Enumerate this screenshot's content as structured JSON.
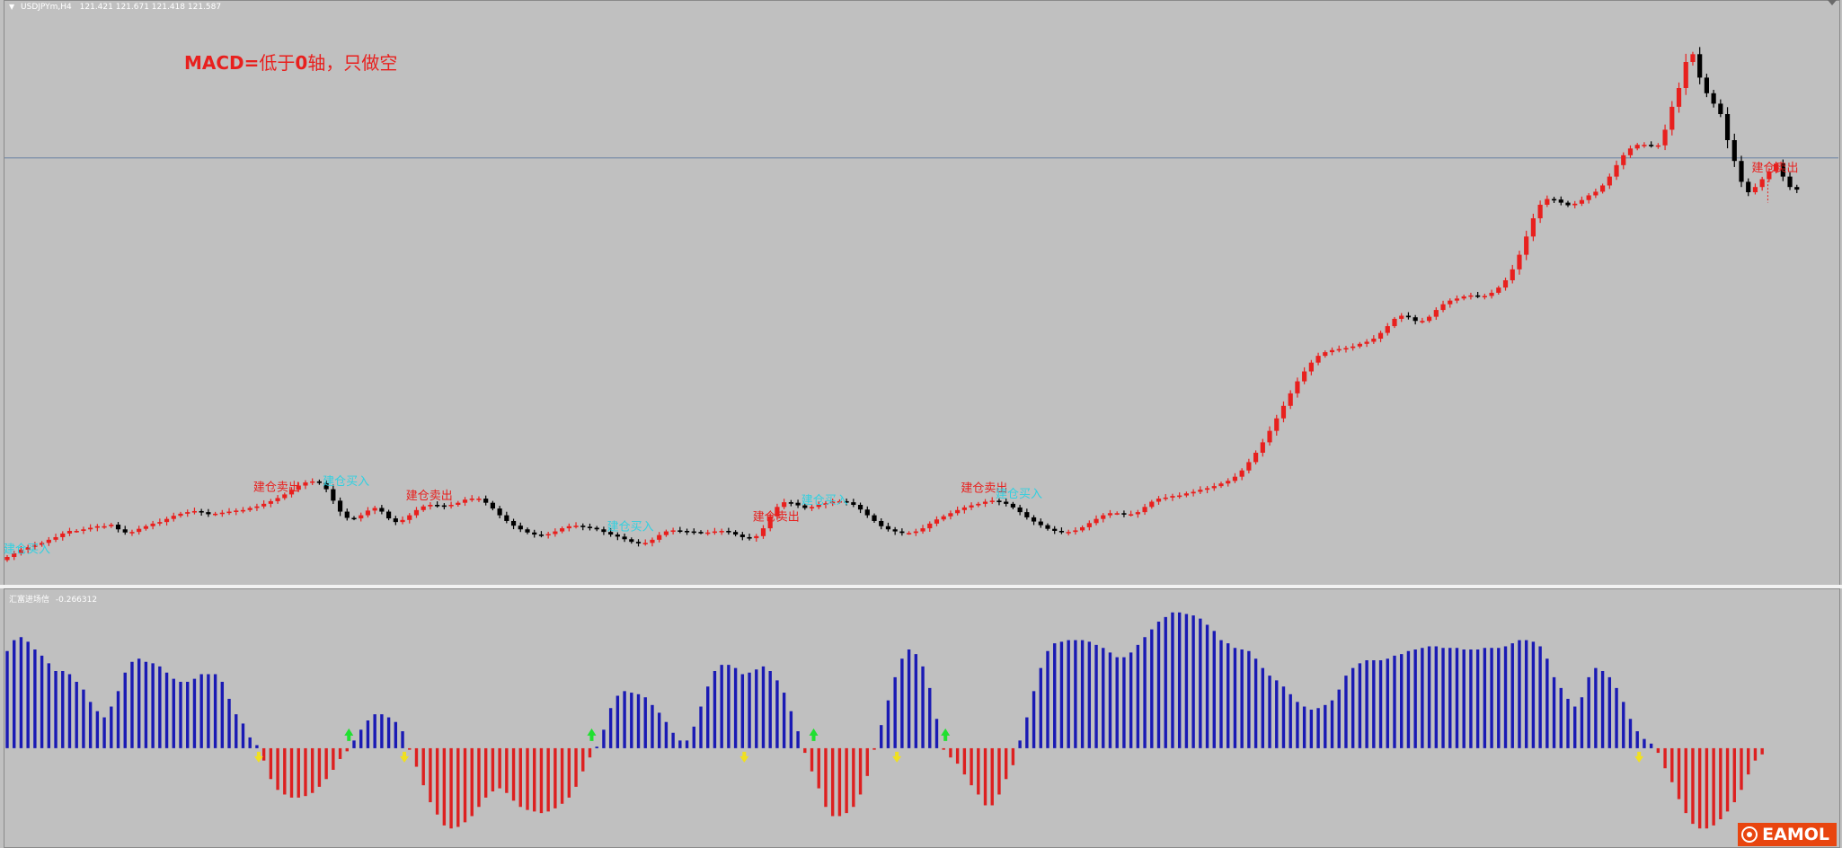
{
  "chart": {
    "symbol": "USDJPYm,H4",
    "ohlc": "121.421 121.671 121.418 121.587"
  },
  "annotation": {
    "strong": "MACD=",
    "rest": "低于",
    "zero": "0",
    "tail": "轴，只做空"
  },
  "indicator": {
    "name": "汇富进场信",
    "value": "-0.266312"
  },
  "watermark": {
    "brand": "EAMOL"
  },
  "colors": {
    "background": "#c0c0c0",
    "bull_candle": "#e8201e",
    "bear_candle": "#000000",
    "histogram_positive": "#1a1ab4",
    "histogram_negative": "#dd2020",
    "sell_label": "#e8201e",
    "buy_label": "#30d0e0",
    "buy_arrow": "#20e030",
    "sell_arrow": "#f0e020",
    "price_line": "#7a8ea8"
  },
  "chart_data": {
    "type": "candlestick",
    "main_series": {
      "name": "USDJPYm,H4",
      "close": [
        0.0,
        0.7,
        1.4,
        1.9,
        2.3,
        2.7,
        3.3,
        3.8,
        4.5,
        5.0,
        5.0,
        5.3,
        5.6,
        5.9,
        5.9,
        6.2,
        5.3,
        4.7,
        4.8,
        5.4,
        5.9,
        6.4,
        6.7,
        7.3,
        7.9,
        8.3,
        8.6,
        8.8,
        8.6,
        8.2,
        8.3,
        8.5,
        8.7,
        8.9,
        9.0,
        9.4,
        9.7,
        10.2,
        10.7,
        11.3,
        12.0,
        12.9,
        13.7,
        14.3,
        14.5,
        14.2,
        13.0,
        10.8,
        8.7,
        7.5,
        7.4,
        8.0,
        8.9,
        9.4,
        8.7,
        7.4,
        6.7,
        7.1,
        8.0,
        9.0,
        9.7,
        10.0,
        9.9,
        9.8,
        10.0,
        10.4,
        11.0,
        11.2,
        11.2,
        10.4,
        9.3,
        8.0,
        6.9,
        6.0,
        5.3,
        4.7,
        4.3,
        4.2,
        4.4,
        4.9,
        5.5,
        5.9,
        6.0,
        5.8,
        5.6,
        5.3,
        4.8,
        4.3,
        3.9,
        3.4,
        2.9,
        2.6,
        2.7,
        3.3,
        4.2,
        4.9,
        5.1,
        5.0,
        4.9,
        4.8,
        4.7,
        4.7,
        4.9,
        5.0,
        4.8,
        4.3,
        3.8,
        3.6,
        4.0,
        5.5,
        7.8,
        9.6,
        10.5,
        10.4,
        9.9,
        9.4,
        9.6,
        10.0,
        10.3,
        10.6,
        10.7,
        10.5,
        10.0,
        9.1,
        8.0,
        6.9,
        5.9,
        5.3,
        4.9,
        4.6,
        4.6,
        4.9,
        5.5,
        6.4,
        7.2,
        7.8,
        8.4,
        9.0,
        9.5,
        9.9,
        10.2,
        10.6,
        10.8,
        10.6,
        10.2,
        9.5,
        8.6,
        7.6,
        6.8,
        6.1,
        5.4,
        5.0,
        4.8,
        4.8,
        5.1,
        5.7,
        6.5,
        7.3,
        8.0,
        8.4,
        8.4,
        8.2,
        8.2,
        8.6,
        9.6,
        10.6,
        11.2,
        11.4,
        11.7,
        11.8,
        12.2,
        12.5,
        12.9,
        13.2,
        13.6,
        14.1,
        14.6,
        15.4,
        16.6,
        18.2,
        20.0,
        22.0,
        24.2,
        26.6,
        29.0,
        31.4,
        33.7,
        35.6,
        37.3,
        38.6,
        39.3,
        39.7,
        39.9,
        40.1,
        40.4,
        40.9,
        41.3,
        41.9,
        43.0,
        44.3,
        45.7,
        46.3,
        46.0,
        45.3,
        45.3,
        46.1,
        47.4,
        48.5,
        49.2,
        49.6,
        50.0,
        50.2,
        50.1,
        50.1,
        50.7,
        51.7,
        53.1,
        55.2,
        58.0,
        61.5,
        65.0,
        67.6,
        68.7,
        68.6,
        68.0,
        67.5,
        67.8,
        68.5,
        69.4,
        70.1,
        71.3,
        73.0,
        75.2,
        77.1,
        78.4,
        79.1,
        79.1,
        79.0,
        79.0,
        82.0,
        86.4,
        90.0,
        95.0,
        96.5,
        92.0,
        89.0,
        87.0,
        85.0,
        80.0,
        76.0,
        72.0,
        70.0,
        71.0,
        72.5,
        74.0,
        75.5,
        73.0,
        71.0,
        70.5
      ],
      "label_sell": "建仓卖出",
      "label_buy": "建仓买入",
      "sell_signal_bars": [
        36,
        58,
        108,
        138,
        252
      ],
      "buy_signal_bars": [
        0,
        46,
        87,
        115,
        143
      ],
      "price_line_level": 76.6
    },
    "histogram": {
      "name": "汇富进场信",
      "values": [
        0.63,
        0.7,
        0.72,
        0.69,
        0.64,
        0.6,
        0.55,
        0.5,
        0.5,
        0.48,
        0.43,
        0.38,
        0.3,
        0.24,
        0.2,
        0.27,
        0.37,
        0.49,
        0.56,
        0.58,
        0.56,
        0.55,
        0.53,
        0.49,
        0.45,
        0.43,
        0.43,
        0.45,
        0.48,
        0.48,
        0.48,
        0.43,
        0.32,
        0.22,
        0.16,
        0.07,
        0.02,
        -0.08,
        -0.2,
        -0.27,
        -0.3,
        -0.32,
        -0.32,
        -0.31,
        -0.29,
        -0.25,
        -0.2,
        -0.14,
        -0.07,
        -0.02,
        0.05,
        0.12,
        0.18,
        0.22,
        0.22,
        0.2,
        0.17,
        0.11,
        -0.01,
        -0.12,
        -0.24,
        -0.35,
        -0.43,
        -0.5,
        -0.52,
        -0.51,
        -0.48,
        -0.44,
        -0.38,
        -0.32,
        -0.28,
        -0.26,
        -0.29,
        -0.34,
        -0.38,
        -0.4,
        -0.41,
        -0.42,
        -0.41,
        -0.39,
        -0.36,
        -0.32,
        -0.25,
        -0.15,
        -0.06,
        0.01,
        0.12,
        0.26,
        0.34,
        0.37,
        0.36,
        0.35,
        0.33,
        0.28,
        0.23,
        0.17,
        0.1,
        0.05,
        0.05,
        0.14,
        0.27,
        0.4,
        0.5,
        0.54,
        0.54,
        0.52,
        0.48,
        0.49,
        0.51,
        0.53,
        0.5,
        0.44,
        0.36,
        0.24,
        0.11,
        -0.03,
        -0.15,
        -0.26,
        -0.38,
        -0.44,
        -0.44,
        -0.42,
        -0.38,
        -0.3,
        -0.18,
        -0.01,
        0.15,
        0.31,
        0.46,
        0.58,
        0.64,
        0.61,
        0.53,
        0.39,
        0.19,
        -0.01,
        -0.06,
        -0.1,
        -0.17,
        -0.24,
        -0.3,
        -0.37,
        -0.37,
        -0.3,
        -0.2,
        -0.11,
        0.05,
        0.2,
        0.37,
        0.52,
        0.63,
        0.68,
        0.69,
        0.7,
        0.7,
        0.7,
        0.69,
        0.67,
        0.65,
        0.62,
        0.59,
        0.59,
        0.62,
        0.67,
        0.72,
        0.77,
        0.82,
        0.85,
        0.88,
        0.88,
        0.87,
        0.86,
        0.84,
        0.8,
        0.76,
        0.7,
        0.68,
        0.65,
        0.64,
        0.63,
        0.58,
        0.52,
        0.47,
        0.44,
        0.4,
        0.35,
        0.3,
        0.27,
        0.25,
        0.26,
        0.28,
        0.31,
        0.38,
        0.47,
        0.52,
        0.55,
        0.57,
        0.57,
        0.57,
        0.58,
        0.6,
        0.61,
        0.63,
        0.64,
        0.65,
        0.66,
        0.66,
        0.65,
        0.65,
        0.65,
        0.64,
        0.64,
        0.64,
        0.65,
        0.65,
        0.65,
        0.66,
        0.68,
        0.7,
        0.7,
        0.69,
        0.66,
        0.58,
        0.46,
        0.39,
        0.32,
        0.27,
        0.33,
        0.46,
        0.52,
        0.5,
        0.46,
        0.39,
        0.3,
        0.19,
        0.11,
        0.06,
        0.03,
        -0.03,
        -0.13,
        -0.22,
        -0.33,
        -0.42,
        -0.49,
        -0.52,
        -0.52,
        -0.5,
        -0.46,
        -0.41,
        -0.35,
        -0.27,
        -0.17,
        -0.08,
        -0.04
      ],
      "zero_line": 0,
      "ylim": [
        -0.6,
        0.96
      ],
      "buy_arrow_bars": [
        49,
        84,
        116,
        135
      ],
      "sell_arrow_bars": [
        36,
        57,
        106,
        128,
        235
      ]
    }
  }
}
